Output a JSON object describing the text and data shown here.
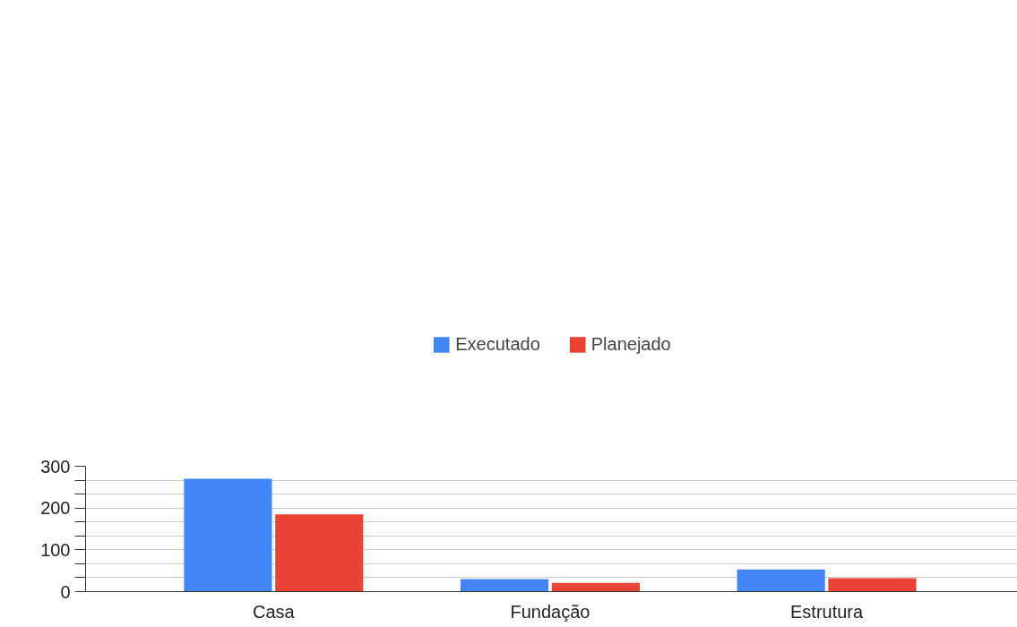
{
  "chart_data": {
    "type": "bar",
    "categories": [
      "Casa",
      "Fundação",
      "Estrutura"
    ],
    "series": [
      {
        "name": "Executado",
        "color": "#4285f4",
        "values": [
          270,
          30,
          53
        ]
      },
      {
        "name": "Planejado",
        "color": "#ea4335",
        "values": [
          185,
          21,
          32
        ]
      }
    ],
    "ylim": [
      0,
      300
    ],
    "yticks": [
      0,
      {
        "value": 33.33,
        "label": null
      },
      {
        "value": 66.67,
        "label": null
      },
      100,
      {
        "value": 133.33,
        "label": null
      },
      {
        "value": 166.67,
        "label": null
      },
      200,
      {
        "value": 233.33,
        "label": null
      },
      {
        "value": 266.67,
        "label": null
      },
      300
    ],
    "grid": "y",
    "legend": "top"
  }
}
